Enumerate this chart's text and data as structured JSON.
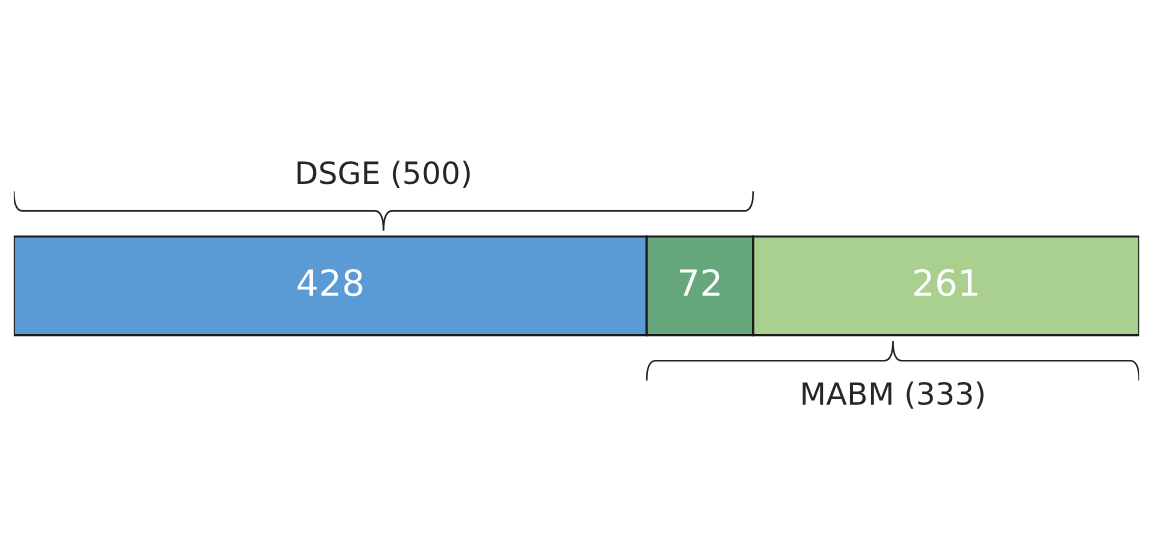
{
  "chart_data": {
    "type": "bar",
    "orientation": "horizontal",
    "stacked": true,
    "categories": [
      null
    ],
    "series": [
      {
        "color": "#5b9bd5",
        "values": [
          428
        ]
      },
      {
        "color": "#66a77e",
        "values": [
          72
        ]
      },
      {
        "color": "#a9d08e",
        "values": [
          261
        ]
      }
    ],
    "data_labels": true,
    "tick_labels": false,
    "legend": false,
    "annotations": [
      "DSGE (500)",
      "MABM (333)"
    ]
  }
}
